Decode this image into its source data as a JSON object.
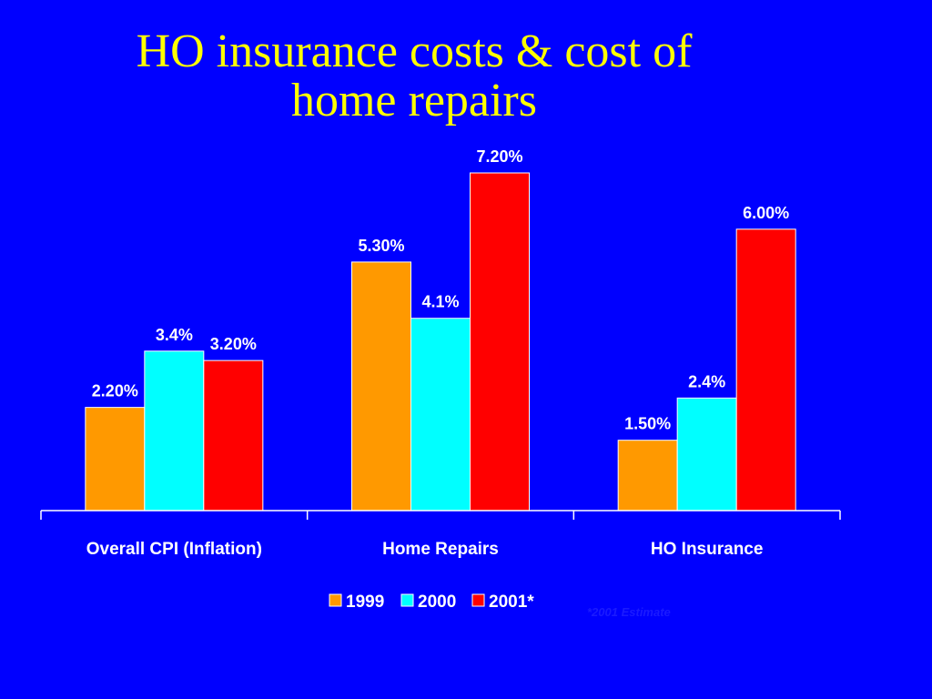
{
  "slide": {
    "title_line1": "HO insurance costs & cost of",
    "title_line2": "home repairs",
    "footnote": "*2001 Estimate",
    "background_color": "#0000ff",
    "title_color": "#ffff00"
  },
  "chart_data": {
    "type": "bar",
    "title": "HO insurance costs & cost of home repairs",
    "categories": [
      "Overall CPI (Inflation)",
      "Home Repairs",
      "HO Insurance"
    ],
    "series": [
      {
        "name": "1999",
        "color": "#ff9900",
        "values": [
          2.2,
          5.3,
          1.5
        ],
        "labels": [
          "2.20%",
          "5.30%",
          "1.50%"
        ]
      },
      {
        "name": "2000",
        "color": "#00ffff",
        "values": [
          3.4,
          4.1,
          2.4
        ],
        "labels": [
          "3.4%",
          "4.1%",
          "2.4%"
        ]
      },
      {
        "name": "2001*",
        "color": "#ff0000",
        "values": [
          3.2,
          7.2,
          6.0
        ],
        "labels": [
          "3.20%",
          "7.20%",
          "6.00%"
        ]
      }
    ],
    "ylim": [
      0,
      7.2
    ],
    "grid": false,
    "legend_position": "bottom"
  }
}
